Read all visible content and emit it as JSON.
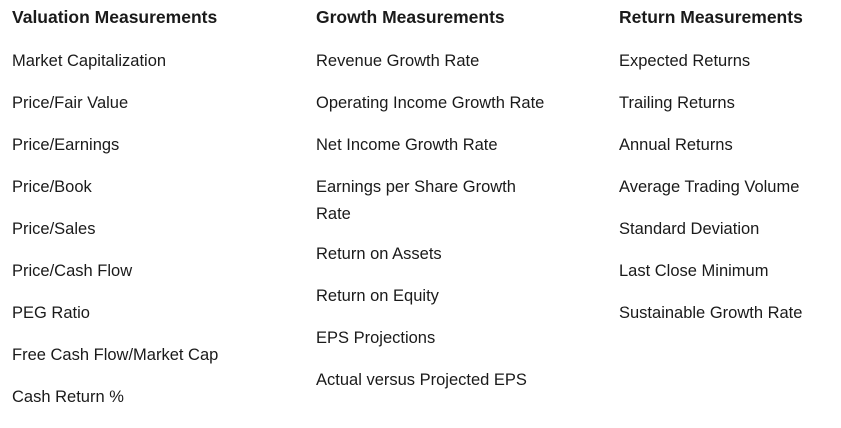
{
  "columns": [
    {
      "heading": "Valuation Measurements",
      "items": [
        "Market Capitalization",
        "Price/Fair Value",
        "Price/Earnings",
        "Price/Book",
        "Price/Sales",
        "Price/Cash Flow",
        "PEG Ratio",
        "Free Cash Flow/Market Cap",
        "Cash Return %"
      ]
    },
    {
      "heading": "Growth Measurements",
      "items": [
        "Revenue Growth Rate",
        "Operating Income Growth Rate",
        "Net Income Growth Rate",
        "Earnings per Share Growth Rate",
        "Return on Assets",
        "Return on Equity",
        "EPS Projections",
        "Actual versus Projected EPS"
      ]
    },
    {
      "heading": "Return Measurements",
      "items": [
        "Expected Returns",
        "Trailing Returns",
        "Annual Returns",
        "Average Trading Volume",
        "Standard Deviation",
        "Last Close Minimum",
        "Sustainable Growth Rate"
      ]
    }
  ]
}
